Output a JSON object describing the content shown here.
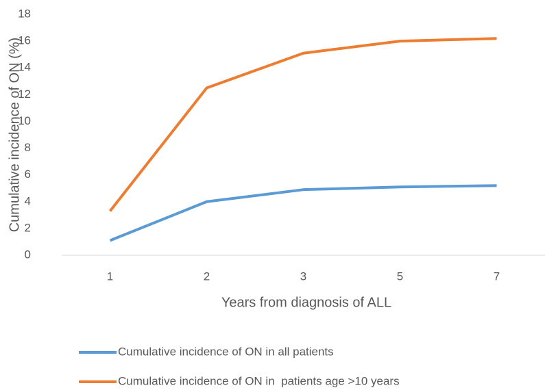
{
  "chart_data": {
    "type": "line",
    "x_label": "Years from diagnosis of ALL",
    "y_label": "Cumulative incidence of ON (%)",
    "categories": [
      "1",
      "2",
      "3",
      "5",
      "7"
    ],
    "series": [
      {
        "name": "Cumulative incidence of ON in all patients",
        "color": "#5b9bd5",
        "values": [
          1.1,
          4.0,
          4.9,
          5.1,
          5.2
        ]
      },
      {
        "name": "Cumulative incidence of ON in  patients age >10 years",
        "color": "#ed7d31",
        "values": [
          3.3,
          12.5,
          15.1,
          16.0,
          16.2
        ]
      }
    ],
    "ylim": [
      0,
      18
    ],
    "yticks": [
      0,
      2,
      4,
      6,
      8,
      10,
      12,
      14,
      16,
      18
    ],
    "grid": false,
    "legend": "bottom"
  }
}
